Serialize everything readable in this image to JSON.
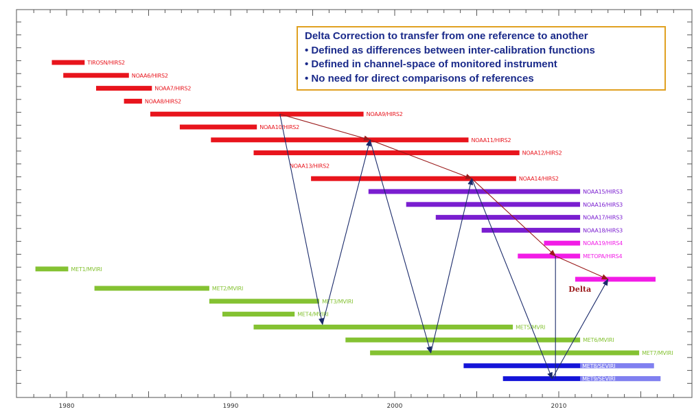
{
  "chart_data": {
    "type": "timeline",
    "title": "",
    "xlabel": "",
    "ylabel": "",
    "xlim": [
      1978,
      2017
    ],
    "x_ticks": [
      1980,
      1990,
      2000,
      2010
    ],
    "x_tick_labels": [
      "1980",
      "1990",
      "2000",
      "2010"
    ],
    "colors": {
      "hirs2": "#e8141c",
      "hirs3": "#7a1ed0",
      "hirs4": "#f21ce6",
      "mvri": "#84c232",
      "seviri": "#1414d8",
      "seviri_extension": "#8080f0",
      "reference_arrow": "#9a1a1a",
      "transfer_arrow": "#1a2a6a",
      "annotation_border": "#e0a020",
      "annotation_text": "#1a2a8a"
    },
    "bars": [
      {
        "row": 0,
        "label": "TIROSN/HIRS2",
        "start": 1979.1,
        "end": 1981.1,
        "color_key": "hirs2"
      },
      {
        "row": 1,
        "label": "NOAA6/HIRS2",
        "start": 1979.8,
        "end": 1983.8,
        "color_key": "hirs2"
      },
      {
        "row": 2,
        "label": "NOAA7/HIRS2",
        "start": 1981.8,
        "end": 1985.2,
        "color_key": "hirs2"
      },
      {
        "row": 3,
        "label": "NOAA8/HIRS2",
        "start": 1983.5,
        "end": 1984.6,
        "color_key": "hirs2"
      },
      {
        "row": 4,
        "label": "NOAA9/HIRS2",
        "start": 1985.1,
        "end": 1998.1,
        "color_key": "hirs2"
      },
      {
        "row": 5,
        "label": "NOAA10/HIRS2",
        "start": 1986.9,
        "end": 1991.6,
        "color_key": "hirs2"
      },
      {
        "row": 6,
        "label": "NOAA11/HIRS2",
        "start": 1988.8,
        "end": 2004.5,
        "color_key": "hirs2"
      },
      {
        "row": 7,
        "label": "NOAA12/HIRS2",
        "start": 1991.4,
        "end": 2007.6,
        "color_key": "hirs2"
      },
      {
        "row": 8,
        "label": "NOAA13/HIRS2",
        "start": null,
        "end": null,
        "color_key": "hirs2"
      },
      {
        "row": 9,
        "label": "NOAA14/HIRS2",
        "start": 1994.9,
        "end": 2007.4,
        "color_key": "hirs2"
      },
      {
        "row": 10,
        "label": "NOAA15/HIRS3",
        "start": 1998.4,
        "end": 2011.3,
        "color_key": "hirs3"
      },
      {
        "row": 11,
        "label": "NOAA16/HIRS3",
        "start": 2000.7,
        "end": 2011.3,
        "color_key": "hirs3"
      },
      {
        "row": 12,
        "label": "NOAA17/HIRS3",
        "start": 2002.5,
        "end": 2011.3,
        "color_key": "hirs3"
      },
      {
        "row": 13,
        "label": "NOAA18/HIRS3",
        "start": 2005.3,
        "end": 2011.3,
        "color_key": "hirs3"
      },
      {
        "row": 14,
        "label": "NOAA19/HIRS4",
        "start": 2009.1,
        "end": 2011.3,
        "color_key": "hirs4"
      },
      {
        "row": 15,
        "label": "METOPA/HIRS4",
        "start": 2007.5,
        "end": 2011.3,
        "color_key": "hirs4"
      },
      {
        "row": 16,
        "label": "MET1/MVIRI",
        "start": 1978.1,
        "end": 1980.1,
        "color_key": "mvri"
      },
      {
        "row": 16.8,
        "label": "",
        "start": 2011.0,
        "end": 2015.9,
        "color_key": "hirs4"
      },
      {
        "row": 17.5,
        "label": "MET2/MVIRI",
        "start": 1981.7,
        "end": 1988.7,
        "color_key": "mvri"
      },
      {
        "row": 18.5,
        "label": "MET3/MVIRI",
        "start": 1988.7,
        "end": 1995.4,
        "color_key": "mvri"
      },
      {
        "row": 19.5,
        "label": "MET4/MVIRI",
        "start": 1989.5,
        "end": 1993.9,
        "color_key": "mvri"
      },
      {
        "row": 20.5,
        "label": "MET5/MVRI",
        "start": 1991.4,
        "end": 2007.2,
        "color_key": "mvri"
      },
      {
        "row": 21.5,
        "label": "MET6/MVIRI",
        "start": 1997.0,
        "end": 2011.3,
        "color_key": "mvri"
      },
      {
        "row": 22.5,
        "label": "MET7/MVIRI",
        "start": 1998.5,
        "end": 2014.9,
        "color_key": "mvri"
      },
      {
        "row": 23.5,
        "label": "MET8/SEVIRI",
        "start": 2004.2,
        "end": 2015.8,
        "color_key": "seviri",
        "extension_start": 2011.3
      },
      {
        "row": 24.5,
        "label": "MET9/SEVIRI",
        "start": 2006.6,
        "end": 2016.2,
        "color_key": "seviri",
        "extension_start": 2011.3
      }
    ],
    "reference_path": [
      [
        1993.0,
        4
      ],
      [
        1998.5,
        6
      ],
      [
        2004.7,
        9
      ],
      [
        2009.8,
        15
      ],
      [
        2013.0,
        16.8
      ]
    ],
    "transfer_path": [
      [
        1993.0,
        4
      ],
      [
        1995.6,
        20.3
      ],
      [
        1998.5,
        6
      ],
      [
        2002.2,
        22.5
      ],
      [
        2004.7,
        9
      ],
      [
        2009.6,
        24.5
      ],
      [
        2013.0,
        16.8
      ]
    ],
    "vertical_link": {
      "x": 2009.8,
      "from_row": 15,
      "to_row": 24.5
    },
    "delta_label": "Delta"
  },
  "annotation": {
    "title": "Delta Correction to transfer from one reference to another",
    "bullets": [
      "• Defined as differences between inter-calibration functions",
      "• Defined in channel-space of monitored instrument",
      "• No need for direct comparisons of references"
    ]
  }
}
